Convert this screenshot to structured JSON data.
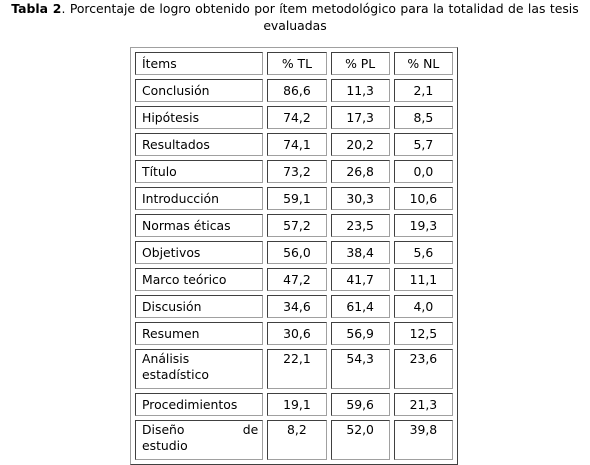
{
  "caption": {
    "label": "Tabla 2",
    "text": ". Porcentaje de logro obtenido por ítem metodológico para la totalidad de las tesis evaluadas"
  },
  "table": {
    "headers": [
      "Ítems",
      "% TL",
      "% PL",
      "% NL"
    ],
    "rows": [
      {
        "item": "Conclusión",
        "tl": "86,6",
        "pl": "11,3",
        "nl": "2,1"
      },
      {
        "item": "Hipótesis",
        "tl": "74,2",
        "pl": "17,3",
        "nl": "8,5"
      },
      {
        "item": "Resultados",
        "tl": "74,1",
        "pl": "20,2",
        "nl": "5,7"
      },
      {
        "item": "Título",
        "tl": "73,2",
        "pl": "26,8",
        "nl": "0,0"
      },
      {
        "item": "Introducción",
        "tl": "59,1",
        "pl": "30,3",
        "nl": "10,6"
      },
      {
        "item": "Normas éticas",
        "tl": "57,2",
        "pl": "23,5",
        "nl": "19,3"
      },
      {
        "item": "Objetivos",
        "tl": "56,0",
        "pl": "38,4",
        "nl": "5,6"
      },
      {
        "item": "Marco teórico",
        "tl": "47,2",
        "pl": "41,7",
        "nl": "11,1"
      },
      {
        "item": "Discusión",
        "tl": "34,6",
        "pl": "61,4",
        "nl": "4,0"
      },
      {
        "item": "Resumen",
        "tl": "30,6",
        "pl": "56,9",
        "nl": "12,5"
      },
      {
        "item_line1": "Análisis",
        "item_line2": "estadístico",
        "tl": "22,1",
        "pl": "54,3",
        "nl": "23,6"
      },
      {
        "item": "Procedimientos",
        "tl": "19,1",
        "pl": "59,6",
        "nl": "21,3"
      },
      {
        "item_line1a": "Diseño",
        "item_line1b": "de",
        "item_line2": "estudio",
        "tl": "8,2",
        "pl": "52,0",
        "nl": "39,8"
      }
    ]
  }
}
